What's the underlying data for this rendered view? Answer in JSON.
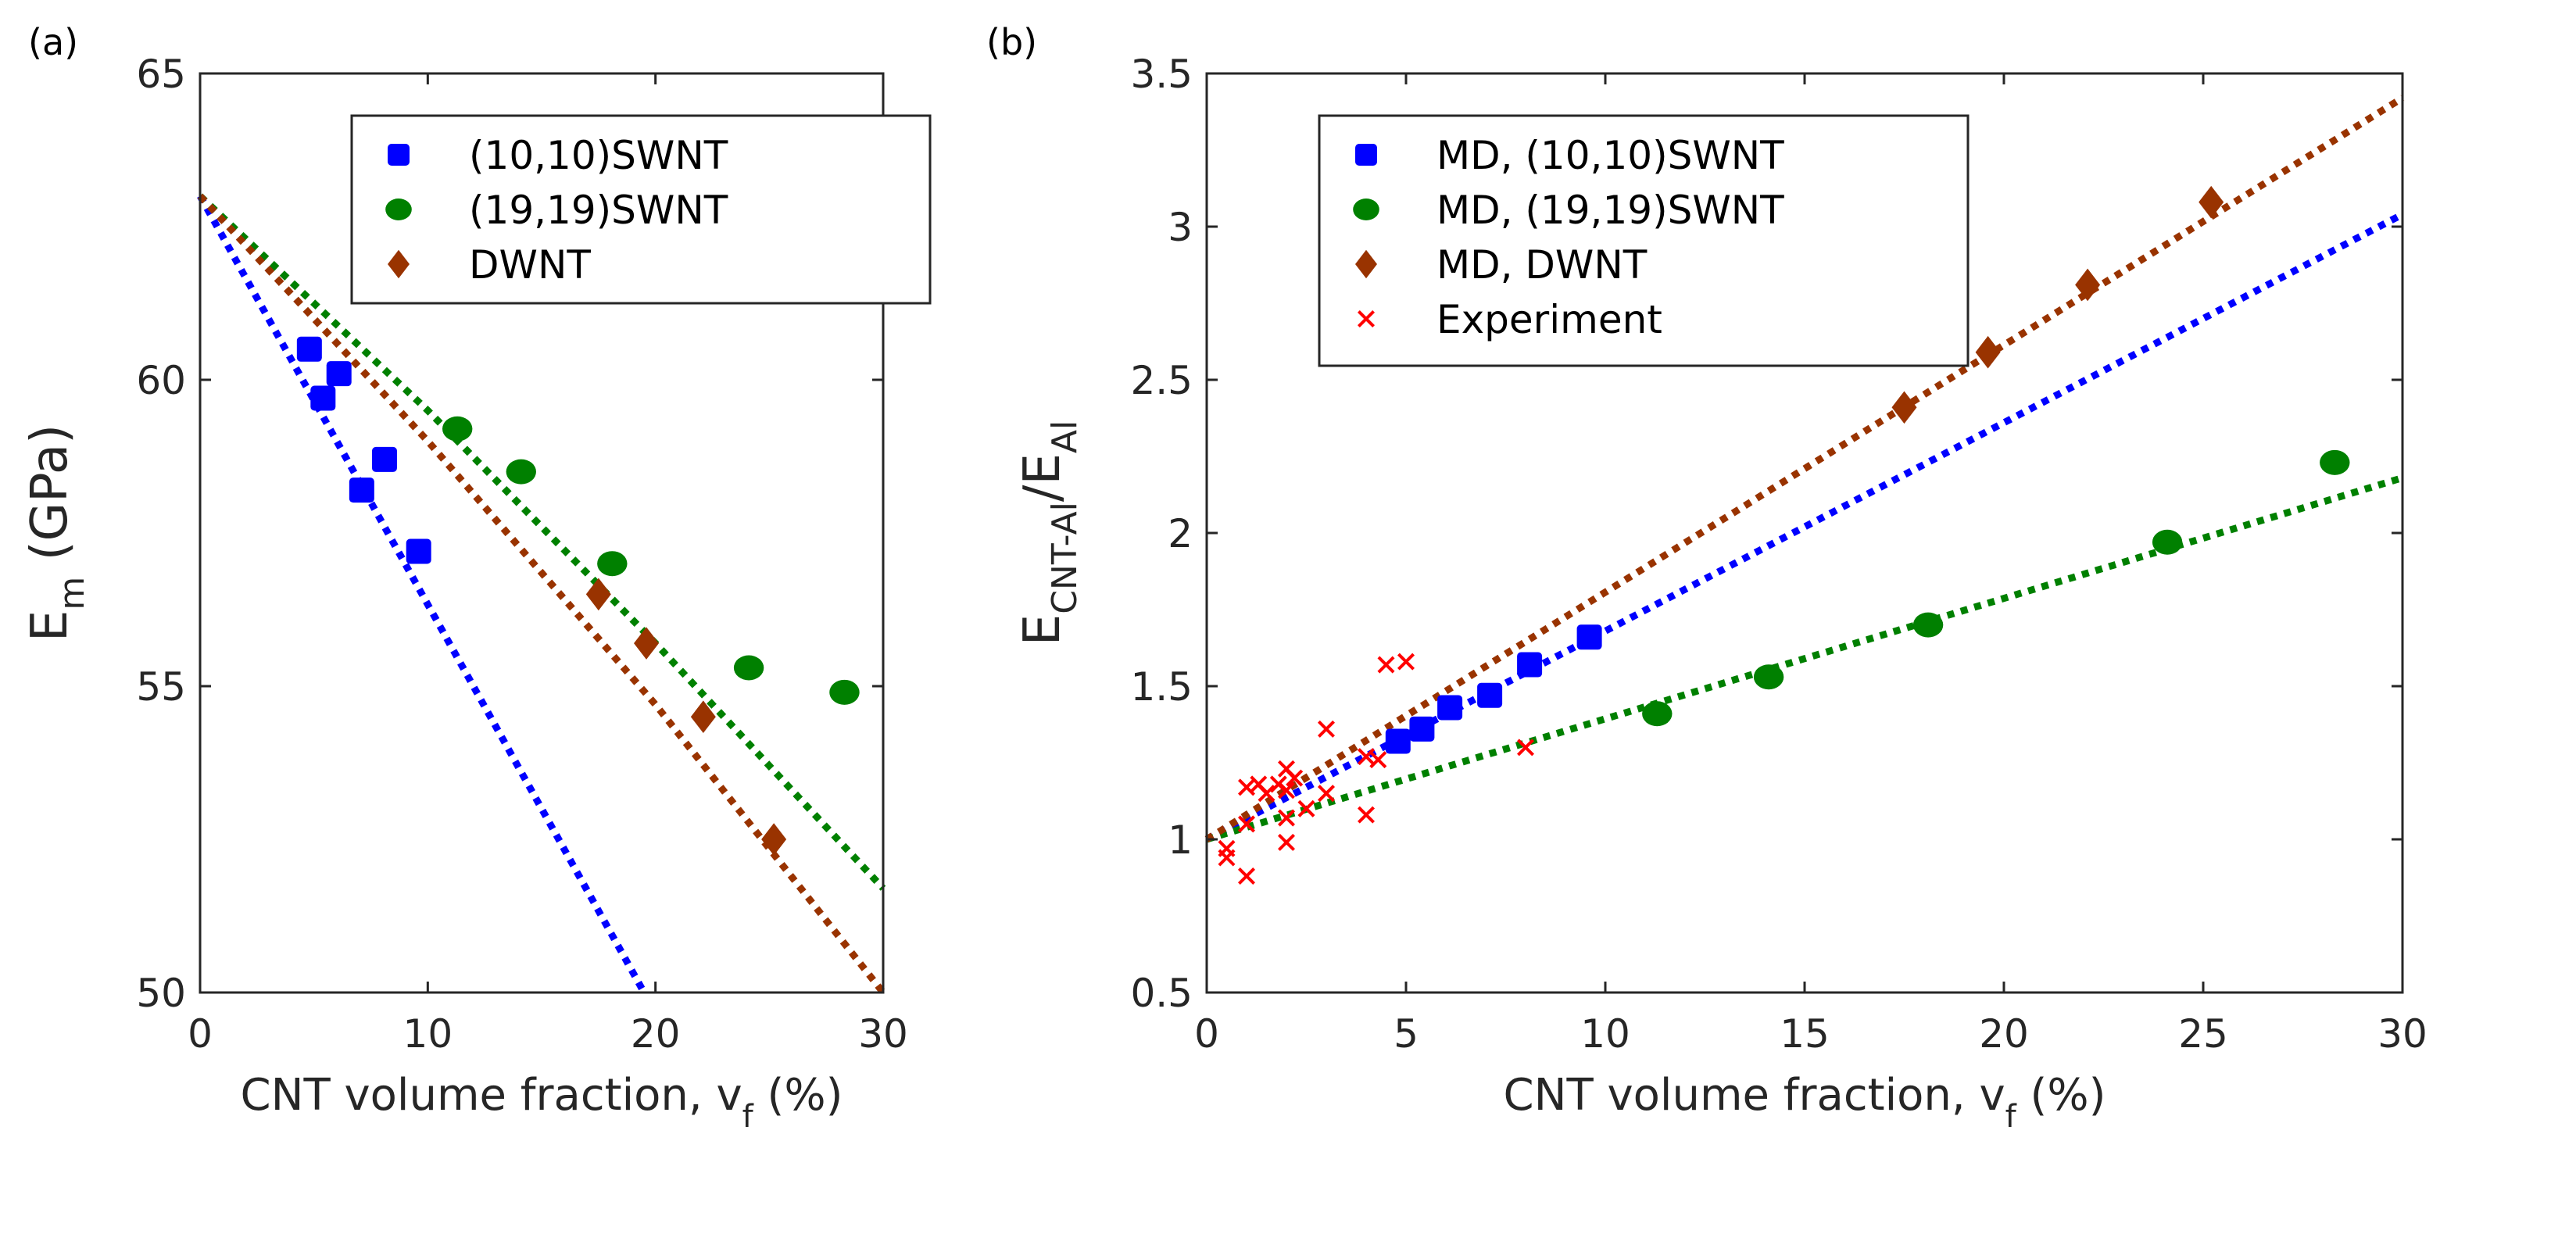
{
  "chart_data": [
    {
      "panel_label": "(a)",
      "type": "scatter",
      "xlabel": "CNT volume fraction, v",
      "xlabel_sub": "f",
      "xlabel_suffix": " (%)",
      "ylabel": "E",
      "ylabel_sub": "m",
      "ylabel_suffix": " (GPa)",
      "xlim": [
        0,
        30
      ],
      "ylim": [
        50,
        65
      ],
      "xticks": [
        0,
        10,
        20,
        30
      ],
      "yticks": [
        50,
        55,
        60,
        65
      ],
      "legend_position": "top-right",
      "series": [
        {
          "name": "(10,10)SWNT",
          "color": "#0000ff",
          "marker": "square",
          "points": [
            [
              4.8,
              60.5
            ],
            [
              5.4,
              59.7
            ],
            [
              6.1,
              60.1
            ],
            [
              7.1,
              58.2
            ],
            [
              8.1,
              58.7
            ],
            [
              9.6,
              57.2
            ]
          ],
          "fit": [
            [
              0,
              63
            ],
            [
              19.5,
              50
            ]
          ]
        },
        {
          "name": "(19,19)SWNT",
          "color": "#008000",
          "marker": "circle",
          "points": [
            [
              11.3,
              59.2
            ],
            [
              14.1,
              58.5
            ],
            [
              18.1,
              57.0
            ],
            [
              24.1,
              55.3
            ],
            [
              28.3,
              54.9
            ]
          ],
          "fit": [
            [
              0,
              63
            ],
            [
              10,
              59.5
            ],
            [
              20,
              55.7
            ],
            [
              30,
              51.7
            ]
          ]
        },
        {
          "name": "DWNT",
          "color": "#993300",
          "marker": "diamond",
          "points": [
            [
              17.5,
              56.5
            ],
            [
              19.6,
              55.7
            ],
            [
              22.1,
              54.5
            ],
            [
              25.2,
              52.5
            ]
          ],
          "fit": [
            [
              0,
              63
            ],
            [
              10,
              59.0
            ],
            [
              20,
              54.7
            ],
            [
              30,
              50
            ]
          ]
        }
      ]
    },
    {
      "panel_label": "(b)",
      "type": "scatter",
      "xlabel": "CNT volume fraction, v",
      "xlabel_sub": "f",
      "xlabel_suffix": " (%)",
      "ylabel": "E",
      "ylabel_sub": "CNT-Al",
      "ylabel_suffix": "/E",
      "ylabel_sub2": "Al",
      "xlim": [
        0,
        30
      ],
      "ylim": [
        0.5,
        3.5
      ],
      "xticks": [
        0,
        5,
        10,
        15,
        20,
        25,
        30
      ],
      "yticks": [
        0.5,
        1,
        1.5,
        2,
        2.5,
        3,
        3.5
      ],
      "legend_position": "top-left",
      "series": [
        {
          "name": "MD, (10,10)SWNT",
          "color": "#0000ff",
          "marker": "square",
          "points": [
            [
              4.8,
              1.32
            ],
            [
              5.4,
              1.36
            ],
            [
              6.1,
              1.43
            ],
            [
              7.1,
              1.47
            ],
            [
              8.1,
              1.57
            ],
            [
              9.6,
              1.66
            ]
          ],
          "fit": [
            [
              0,
              1
            ],
            [
              30,
              3.04
            ]
          ]
        },
        {
          "name": "MD, (19,19)SWNT",
          "color": "#008000",
          "marker": "circle",
          "points": [
            [
              11.3,
              1.41
            ],
            [
              14.1,
              1.53
            ],
            [
              18.1,
              1.7
            ],
            [
              24.1,
              1.97
            ],
            [
              28.3,
              2.23
            ]
          ],
          "fit": [
            [
              0,
              1
            ],
            [
              30,
              2.18
            ]
          ]
        },
        {
          "name": "MD, DWNT",
          "color": "#993300",
          "marker": "diamond",
          "points": [
            [
              17.5,
              2.41
            ],
            [
              19.6,
              2.59
            ],
            [
              22.1,
              2.81
            ],
            [
              25.2,
              3.08
            ]
          ],
          "fit": [
            [
              0,
              1
            ],
            [
              30,
              3.42
            ]
          ]
        },
        {
          "name": "Experiment",
          "color": "#ff0000",
          "marker": "x",
          "points": [
            [
              0.5,
              0.97
            ],
            [
              0.5,
              0.94
            ],
            [
              1,
              0.88
            ],
            [
              1,
              1.05
            ],
            [
              1,
              1.17
            ],
            [
              1.3,
              1.18
            ],
            [
              1.5,
              1.15
            ],
            [
              1.8,
              1.18
            ],
            [
              2,
              1.23
            ],
            [
              2,
              1.16
            ],
            [
              2,
              1.07
            ],
            [
              2,
              0.99
            ],
            [
              2.2,
              1.2
            ],
            [
              2.5,
              1.1
            ],
            [
              3,
              1.36
            ],
            [
              3,
              1.15
            ],
            [
              4,
              1.08
            ],
            [
              4,
              1.27
            ],
            [
              4.3,
              1.26
            ],
            [
              4.5,
              1.57
            ],
            [
              5,
              1.58
            ],
            [
              8,
              1.3
            ]
          ]
        }
      ]
    }
  ]
}
